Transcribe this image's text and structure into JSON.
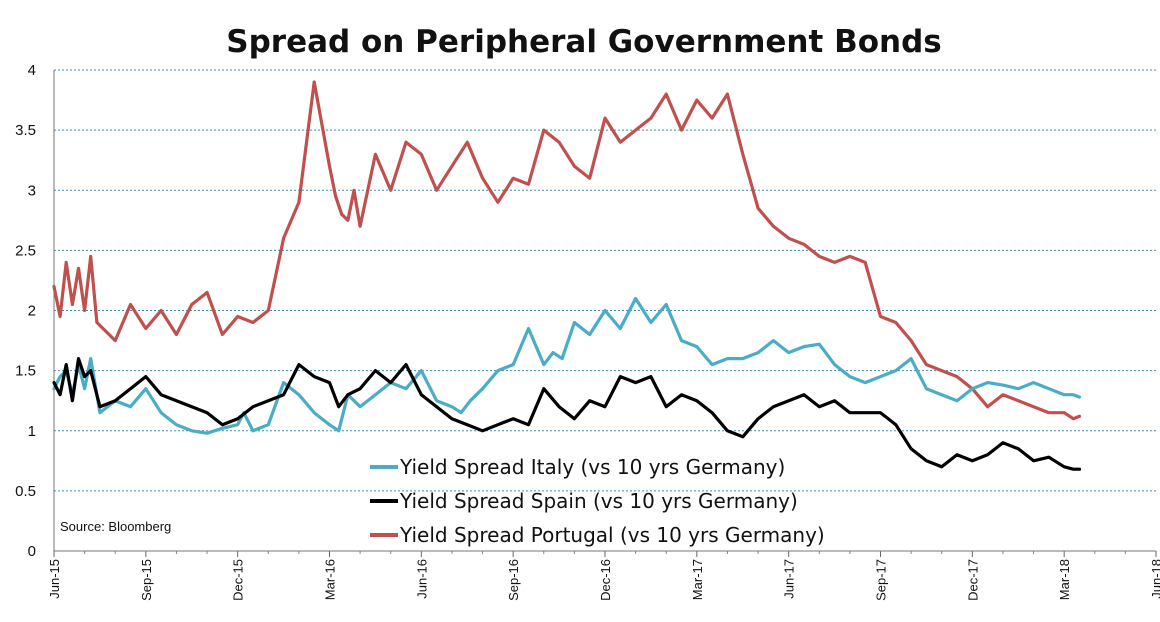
{
  "chart_data": {
    "type": "line",
    "title": "Spread on Peripheral Government Bonds",
    "source": "Source:  Bloomberg",
    "xlabel": "",
    "ylabel": "",
    "ylim": [
      0,
      4
    ],
    "yticks": [
      "0",
      "0.5",
      "1",
      "1.5",
      "2",
      "2.5",
      "3",
      "3.5",
      "4"
    ],
    "xticks": [
      "Jun-15",
      "Sep-15",
      "Dec-15",
      "Mar-16",
      "Jun-16",
      "Sep-16",
      "Dec-16",
      "Mar-17",
      "Jun-17",
      "Sep-17",
      "Dec-17",
      "Mar-18",
      "Jun-18"
    ],
    "grid": true,
    "legend_position": "bottom-center",
    "series": [
      {
        "name": "Yield Spread Italy (vs 10 yrs Germany)",
        "color": "#4aacc5",
        "x": [
          0,
          0.2,
          0.4,
          0.6,
          0.8,
          1.0,
          1.2,
          1.5,
          2.0,
          2.5,
          3.0,
          3.5,
          4.0,
          4.5,
          5.0,
          5.5,
          6.0,
          6.2,
          6.5,
          7.0,
          7.5,
          8.0,
          8.5,
          9.0,
          9.3,
          9.6,
          10.0,
          10.5,
          11.0,
          11.5,
          12.0,
          12.5,
          13.0,
          13.3,
          13.6,
          14.0,
          14.5,
          15.0,
          15.5,
          16.0,
          16.3,
          16.6,
          17.0,
          17.5,
          18.0,
          18.5,
          19.0,
          19.5,
          20.0,
          20.5,
          21.0,
          21.5,
          22.0,
          22.5,
          23.0,
          23.5,
          24.0,
          24.5,
          25.0,
          25.5,
          26.0,
          26.5,
          27.0,
          27.5,
          28.0,
          28.5,
          29.0,
          29.5,
          30.0,
          30.5,
          31.0,
          31.5,
          32.0,
          32.5,
          33.0,
          33.3,
          33.5
        ],
        "y": [
          1.35,
          1.45,
          1.5,
          1.3,
          1.55,
          1.35,
          1.6,
          1.15,
          1.25,
          1.2,
          1.35,
          1.15,
          1.05,
          1.0,
          0.98,
          1.02,
          1.05,
          1.15,
          1.0,
          1.05,
          1.4,
          1.3,
          1.15,
          1.05,
          1.0,
          1.3,
          1.2,
          1.3,
          1.4,
          1.35,
          1.5,
          1.25,
          1.2,
          1.15,
          1.25,
          1.35,
          1.5,
          1.55,
          1.85,
          1.55,
          1.65,
          1.6,
          1.9,
          1.8,
          2.0,
          1.85,
          2.1,
          1.9,
          2.05,
          1.75,
          1.7,
          1.55,
          1.6,
          1.6,
          1.65,
          1.75,
          1.65,
          1.7,
          1.72,
          1.55,
          1.45,
          1.4,
          1.45,
          1.5,
          1.6,
          1.35,
          1.3,
          1.25,
          1.35,
          1.4,
          1.38,
          1.35,
          1.4,
          1.35,
          1.3,
          1.3,
          1.28
        ]
      },
      {
        "name": "Yield Spread Spain (vs 10 yrs Germany)",
        "color": "#000000",
        "x": [
          0,
          0.2,
          0.4,
          0.6,
          0.8,
          1.0,
          1.2,
          1.5,
          2.0,
          2.5,
          3.0,
          3.5,
          4.0,
          4.5,
          5.0,
          5.5,
          6.0,
          6.5,
          7.0,
          7.5,
          8.0,
          8.5,
          9.0,
          9.3,
          9.6,
          10.0,
          10.5,
          11.0,
          11.5,
          12.0,
          12.5,
          13.0,
          13.5,
          14.0,
          14.5,
          15.0,
          15.5,
          16.0,
          16.5,
          17.0,
          17.5,
          18.0,
          18.5,
          19.0,
          19.5,
          20.0,
          20.5,
          21.0,
          21.5,
          22.0,
          22.5,
          23.0,
          23.5,
          24.0,
          24.5,
          25.0,
          25.5,
          26.0,
          26.5,
          27.0,
          27.5,
          28.0,
          28.5,
          29.0,
          29.5,
          30.0,
          30.5,
          31.0,
          31.5,
          32.0,
          32.5,
          33.0,
          33.3,
          33.5
        ],
        "y": [
          1.4,
          1.3,
          1.55,
          1.25,
          1.6,
          1.45,
          1.5,
          1.2,
          1.25,
          1.35,
          1.45,
          1.3,
          1.25,
          1.2,
          1.15,
          1.05,
          1.1,
          1.2,
          1.25,
          1.3,
          1.55,
          1.45,
          1.4,
          1.2,
          1.3,
          1.35,
          1.5,
          1.4,
          1.55,
          1.3,
          1.2,
          1.1,
          1.05,
          1.0,
          1.05,
          1.1,
          1.05,
          1.35,
          1.2,
          1.1,
          1.25,
          1.2,
          1.45,
          1.4,
          1.45,
          1.2,
          1.3,
          1.25,
          1.15,
          1.0,
          0.95,
          1.1,
          1.2,
          1.25,
          1.3,
          1.2,
          1.25,
          1.15,
          1.15,
          1.15,
          1.05,
          0.85,
          0.75,
          0.7,
          0.8,
          0.75,
          0.8,
          0.9,
          0.85,
          0.75,
          0.78,
          0.7,
          0.68,
          0.68
        ]
      },
      {
        "name": "Yield Spread Portugal (vs 10 yrs Germany)",
        "color": "#c0504d",
        "x": [
          0,
          0.2,
          0.4,
          0.6,
          0.8,
          1.0,
          1.2,
          1.4,
          1.6,
          1.8,
          2.0,
          2.5,
          3.0,
          3.5,
          4.0,
          4.5,
          5.0,
          5.5,
          6.0,
          6.5,
          7.0,
          7.5,
          8.0,
          8.5,
          9.0,
          9.2,
          9.4,
          9.6,
          9.8,
          10.0,
          10.5,
          11.0,
          11.5,
          12.0,
          12.5,
          13.0,
          13.5,
          14.0,
          14.5,
          15.0,
          15.5,
          16.0,
          16.5,
          17.0,
          17.5,
          18.0,
          18.5,
          19.0,
          19.5,
          20.0,
          20.5,
          21.0,
          21.5,
          22.0,
          22.5,
          23.0,
          23.5,
          24.0,
          24.5,
          25.0,
          25.5,
          26.0,
          26.5,
          27.0,
          27.5,
          28.0,
          28.5,
          29.0,
          29.5,
          30.0,
          30.5,
          31.0,
          31.5,
          32.0,
          32.5,
          33.0,
          33.3,
          33.5
        ],
        "y": [
          2.2,
          1.95,
          2.4,
          2.05,
          2.35,
          2.0,
          2.45,
          1.9,
          1.85,
          1.8,
          1.75,
          2.05,
          1.85,
          2.0,
          1.8,
          2.05,
          2.15,
          1.8,
          1.95,
          1.9,
          2.0,
          2.6,
          2.9,
          3.9,
          3.2,
          2.95,
          2.8,
          2.75,
          3.0,
          2.7,
          3.3,
          3.0,
          3.4,
          3.3,
          3.0,
          3.2,
          3.4,
          3.1,
          2.9,
          3.1,
          3.05,
          3.5,
          3.4,
          3.2,
          3.1,
          3.6,
          3.4,
          3.5,
          3.6,
          3.8,
          3.5,
          3.75,
          3.6,
          3.8,
          3.3,
          2.85,
          2.7,
          2.6,
          2.55,
          2.45,
          2.4,
          2.45,
          2.4,
          1.95,
          1.9,
          1.75,
          1.55,
          1.5,
          1.45,
          1.35,
          1.2,
          1.3,
          1.25,
          1.2,
          1.15,
          1.15,
          1.1,
          1.12
        ]
      }
    ]
  }
}
